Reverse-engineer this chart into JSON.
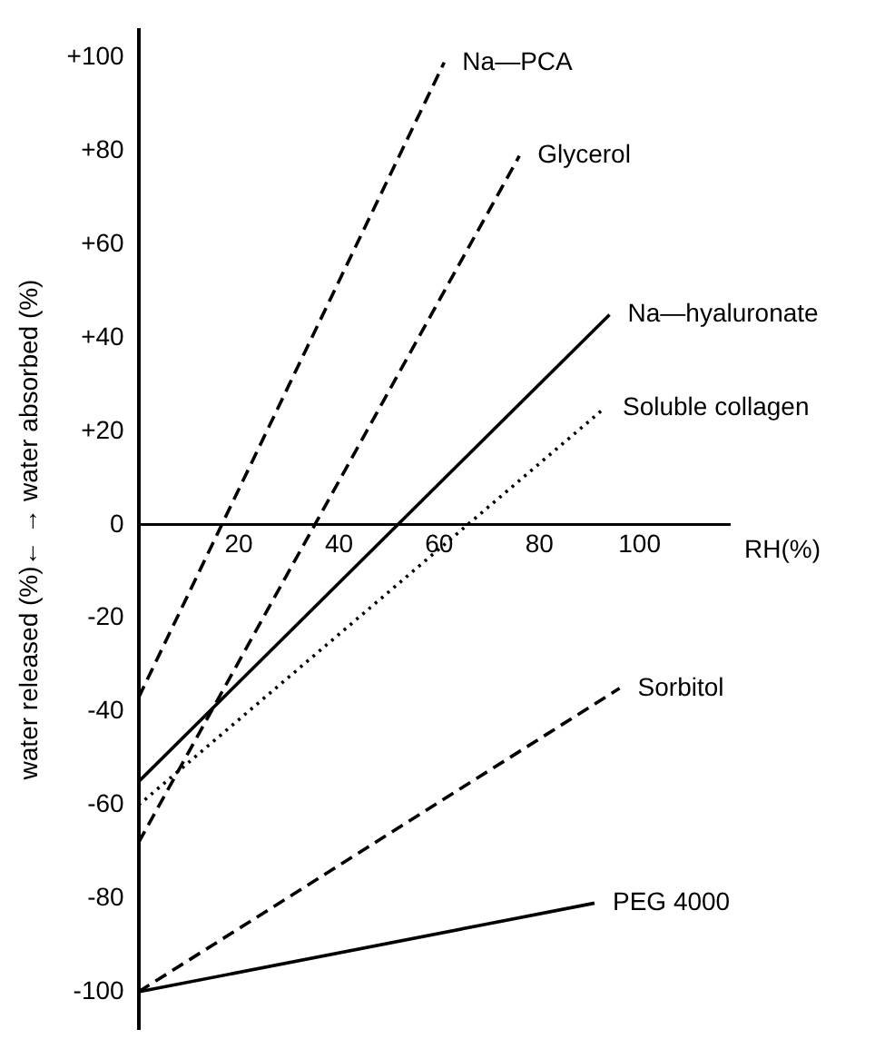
{
  "chart_data": {
    "type": "line",
    "xlabel": "RH(%)",
    "ylabel": "water released (%)← → water absorbed (%)",
    "xlim": [
      0,
      118
    ],
    "xticks": [
      20,
      40,
      60,
      80,
      100
    ],
    "ylim": [
      -108,
      106
    ],
    "yticks": [
      {
        "value": 100,
        "label": "+100"
      },
      {
        "value": 80,
        "label": "+80"
      },
      {
        "value": 60,
        "label": "+60"
      },
      {
        "value": 40,
        "label": "+40"
      },
      {
        "value": 20,
        "label": "+20"
      },
      0,
      -20,
      -40,
      -60,
      -80,
      -100
    ],
    "grid": false,
    "legend": false,
    "marker": "none",
    "series": [
      {
        "name": "Na—PCA",
        "color": "#000000",
        "x": [
          0,
          61
        ],
        "values": [
          -37,
          99
        ],
        "line_style": "dashed"
      },
      {
        "name": "Glycerol",
        "color": "#000000",
        "x": [
          0,
          76
        ],
        "values": [
          -68,
          79
        ],
        "line_style": "dashed"
      },
      {
        "name": "Na—hyaluronate",
        "color": "#000000",
        "x": [
          0,
          94
        ],
        "values": [
          -55,
          45
        ],
        "line_style": "solid"
      },
      {
        "name": "Soluble collagen",
        "color": "#000000",
        "x": [
          0,
          93
        ],
        "values": [
          -60,
          25
        ],
        "line_style": "dotted"
      },
      {
        "name": "Sorbitol",
        "color": "#000000",
        "x": [
          0,
          96
        ],
        "values": [
          -100,
          -35
        ],
        "line_style": "dashed"
      },
      {
        "name": "PEG 4000",
        "color": "#000000",
        "x": [
          0,
          91
        ],
        "values": [
          -100,
          -81
        ],
        "line_style": "solid"
      }
    ]
  }
}
